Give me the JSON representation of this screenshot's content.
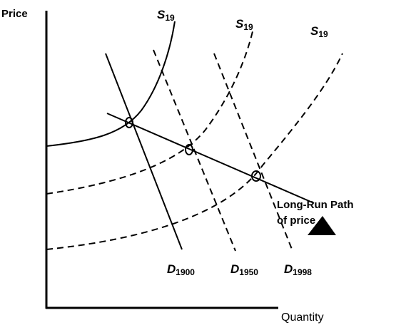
{
  "axes": {
    "y_label": "Price",
    "x_label": "Quantity"
  },
  "supply_curves": [
    {
      "main": "S",
      "sub": "19"
    },
    {
      "main": "S",
      "sub": "19"
    },
    {
      "main": "S",
      "sub": "19"
    }
  ],
  "demand_curves": [
    {
      "main": "D",
      "sub": "1900"
    },
    {
      "main": "D",
      "sub": "1950"
    },
    {
      "main": "D",
      "sub": "1998"
    }
  ],
  "annotation": {
    "lines": [
      "Long-Run Path",
      "of price"
    ]
  }
}
